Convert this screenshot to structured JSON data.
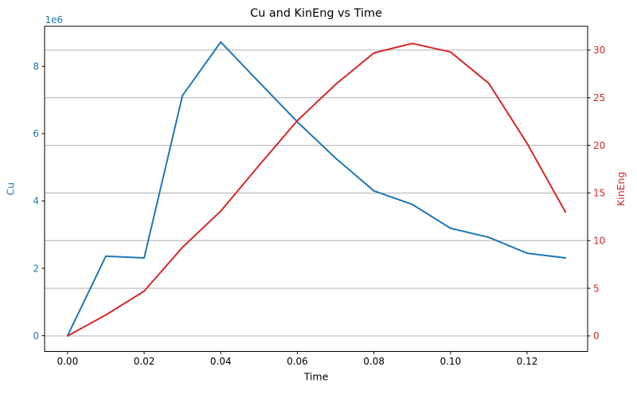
{
  "chart_data": {
    "type": "line",
    "title": "Cu and KinEng vs Time",
    "xlabel": "Time",
    "ylabel_left": "Cu",
    "ylabel_right": "KinEng",
    "offset_text_left": "1e6",
    "grid": true,
    "grid_follows": "right_axis",
    "legend": "none",
    "x": [
      0.0,
      0.01,
      0.02,
      0.03,
      0.04,
      0.05,
      0.06,
      0.07,
      0.08,
      0.09,
      0.1,
      0.11,
      0.12,
      0.13
    ],
    "series": [
      {
        "name": "Cu",
        "axis": "left",
        "color": "#1f77b4",
        "values": [
          0,
          2360000,
          2310000,
          7130000,
          8720000,
          7530000,
          6350000,
          5270000,
          4300000,
          3900000,
          3190000,
          2920000,
          2450000,
          2310000
        ]
      },
      {
        "name": "KinEng",
        "axis": "right",
        "color": "#d62728",
        "values": [
          0,
          2.2,
          4.7,
          9.3,
          13.1,
          17.9,
          22.6,
          26.4,
          29.7,
          30.7,
          29.8,
          26.5,
          20.2,
          13.0
        ]
      }
    ],
    "xlim": [
      -0.006,
      0.1358
    ],
    "ylim_left": [
      -468000,
      9189000
    ],
    "ylim_right": [
      -1.63,
      32.5
    ],
    "x_ticks": [
      0.0,
      0.02,
      0.04,
      0.06,
      0.08,
      0.1,
      0.12
    ],
    "x_tick_labels": [
      "0.00",
      "0.02",
      "0.04",
      "0.06",
      "0.08",
      "0.10",
      "0.12"
    ],
    "left_ticks": [
      0,
      2000000,
      4000000,
      6000000,
      8000000
    ],
    "left_tick_labels": [
      "0",
      "2",
      "4",
      "6",
      "8"
    ],
    "right_ticks": [
      0,
      5,
      10,
      15,
      20,
      25,
      30
    ],
    "right_tick_labels": [
      "0",
      "5",
      "10",
      "15",
      "20",
      "25",
      "30"
    ],
    "colors": {
      "left_axis_text": "#1f77b4",
      "right_axis_text": "#d62728",
      "x_axis_text": "#000000",
      "title_text": "#000000",
      "gridline": "#b0b0b0",
      "spine": "#000000",
      "background": "#ffffff"
    }
  }
}
